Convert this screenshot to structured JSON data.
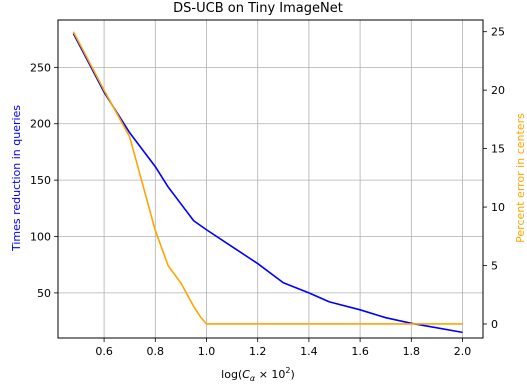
{
  "chart_data": {
    "type": "line",
    "title": "DS-UCB on Tiny ImageNet",
    "xlabel_main": "log(",
    "xlabel_var": "C",
    "xlabel_sub": "α",
    "xlabel_times": " × 10",
    "xlabel_sup": "2",
    "xlabel_close": ")",
    "ylabel_left": "Times reduction in queries",
    "ylabel_right": "Percent error in centers",
    "xlim": [
      0.42,
      2.08
    ],
    "ylim_left": [
      10,
      292
    ],
    "ylim_right": [
      -1.2,
      26
    ],
    "x_ticks": [
      "0.6",
      "0.8",
      "1.0",
      "1.2",
      "1.4",
      "1.6",
      "1.8",
      "2.0"
    ],
    "y_left_ticks": [
      "50",
      "100",
      "150",
      "200",
      "250"
    ],
    "y_right_ticks": [
      "0",
      "5",
      "10",
      "15",
      "20",
      "25"
    ],
    "grid": true,
    "colors": {
      "left_series": "#0000ff",
      "right_series": "#ffa500"
    },
    "series": [
      {
        "axis": "left",
        "points": [
          [
            0.48,
            280
          ],
          [
            0.6,
            228
          ],
          [
            0.7,
            192
          ],
          [
            0.8,
            162
          ],
          [
            0.85,
            144
          ],
          [
            0.9,
            129
          ],
          [
            0.95,
            114
          ],
          [
            1.0,
            106
          ],
          [
            1.1,
            91
          ],
          [
            1.2,
            76
          ],
          [
            1.3,
            59
          ],
          [
            1.4,
            50
          ],
          [
            1.48,
            42
          ],
          [
            1.6,
            35
          ],
          [
            1.7,
            28
          ],
          [
            1.8,
            23
          ],
          [
            1.9,
            19
          ],
          [
            2.0,
            15
          ]
        ]
      },
      {
        "axis": "right",
        "points": [
          [
            0.48,
            25
          ],
          [
            0.6,
            20
          ],
          [
            0.7,
            16
          ],
          [
            0.75,
            12
          ],
          [
            0.8,
            8
          ],
          [
            0.85,
            5
          ],
          [
            0.9,
            3.5
          ],
          [
            0.95,
            1.5
          ],
          [
            0.98,
            0.5
          ],
          [
            1.0,
            0
          ],
          [
            1.2,
            0
          ],
          [
            1.4,
            0
          ],
          [
            1.6,
            0
          ],
          [
            1.8,
            0
          ],
          [
            2.0,
            0
          ]
        ]
      }
    ]
  }
}
